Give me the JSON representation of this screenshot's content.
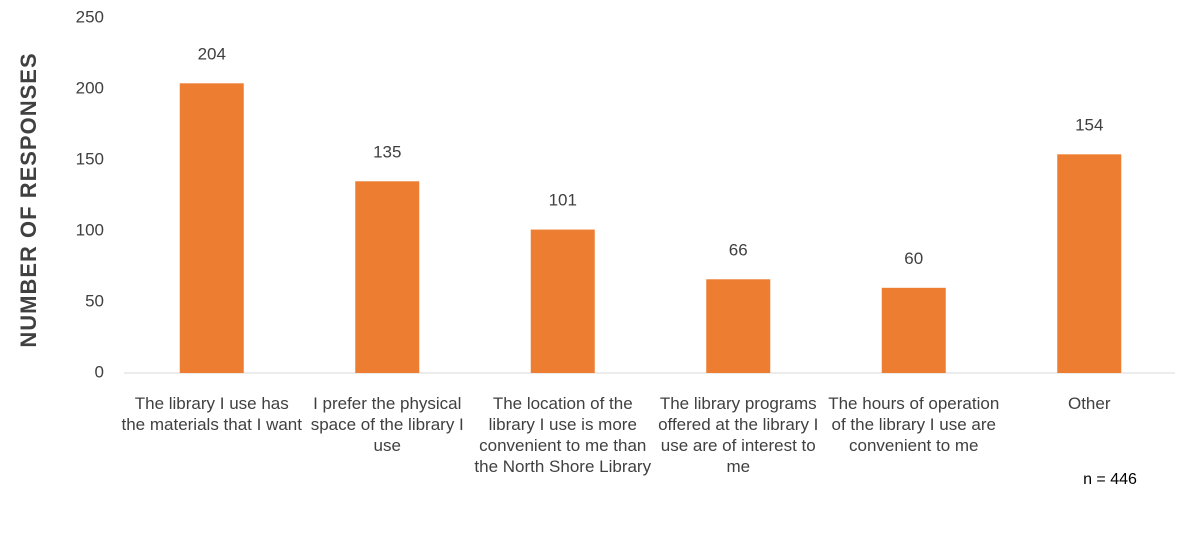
{
  "chart_data": {
    "type": "bar",
    "y_label": "NUMBER OF RESPONSES",
    "annotation": "n = 446",
    "categories": [
      "The library I use has the materials that I want",
      "I prefer the physical space of the library I use",
      "The location of the library I use is more convenient to me than the North Shore Library",
      "The library programs offered at the library I use are of interest to me",
      "The hours of operation of the library I use are convenient to me",
      "Other"
    ],
    "values": [
      204,
      135,
      101,
      66,
      60,
      154
    ],
    "color": "#ed7d31",
    "ylim": [
      0,
      250
    ],
    "yticks": [
      0,
      50,
      100,
      150,
      200,
      250
    ],
    "grid": false
  }
}
